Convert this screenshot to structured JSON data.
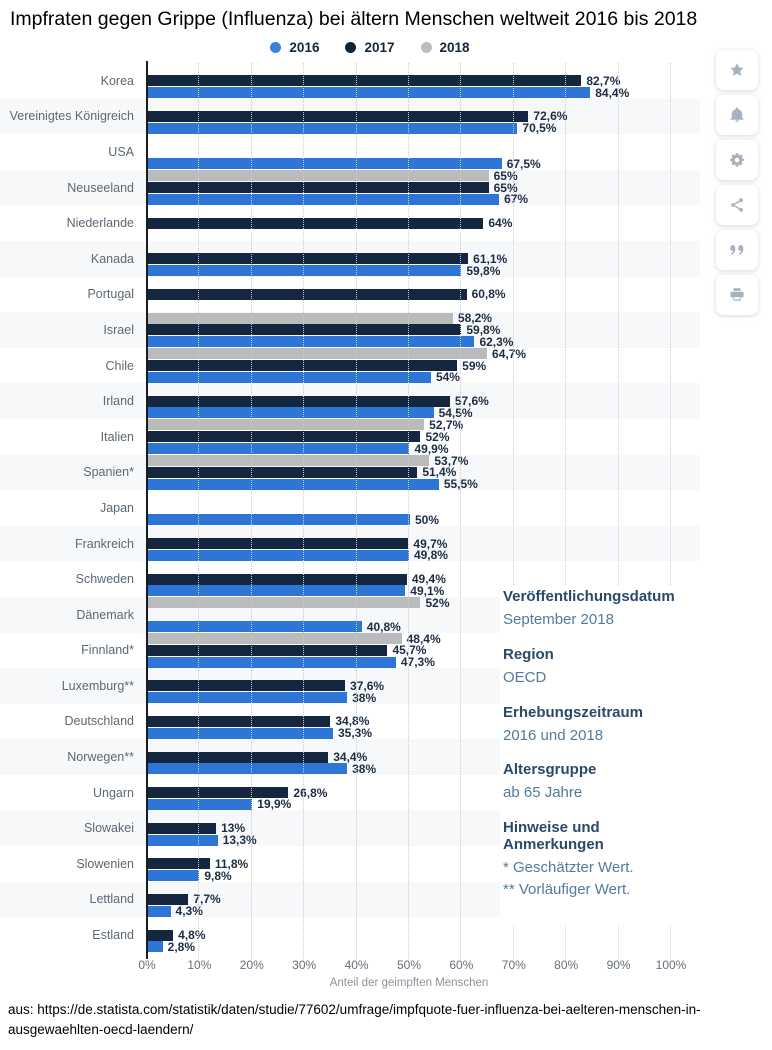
{
  "header": {
    "title": "Impfraten gegen Grippe (Influenza) bei ältern Menschen weltweit 2016 bis 2018"
  },
  "legend": {
    "items": [
      {
        "label": "2016",
        "color": "#3b82dd"
      },
      {
        "label": "2017",
        "color": "#0e2337"
      },
      {
        "label": "2018",
        "color": "#bcbdc0"
      }
    ]
  },
  "chart_data": {
    "type": "bar",
    "orientation": "horizontal",
    "title": "Impfraten gegen Grippe (Influenza) bei ältern Menschen weltweit 2016 bis 2018",
    "xlabel": "Anteil der geimpften Menschen",
    "xlim": [
      0,
      100
    ],
    "xticks": [
      "0%",
      "10%",
      "20%",
      "30%",
      "40%",
      "50%",
      "60%",
      "70%",
      "80%",
      "90%",
      "100%"
    ],
    "grid": true,
    "legend_position": "top",
    "value_suffix": "%",
    "decimal_separator": ",",
    "categories": [
      "Korea",
      "Vereinigtes Königreich",
      "USA",
      "Neuseeland",
      "Niederlande",
      "Kanada",
      "Portugal",
      "Israel",
      "Chile",
      "Irland",
      "Italien",
      "Spanien*",
      "Japan",
      "Frankreich",
      "Schweden",
      "Dänemark",
      "Finnland*",
      "Luxemburg**",
      "Deutschland",
      "Norwegen**",
      "Ungarn",
      "Slowakei",
      "Slowenien",
      "Lettland",
      "Estland"
    ],
    "series": [
      {
        "name": "2018",
        "color": "#b9bbbd",
        "values": [
          null,
          null,
          null,
          65,
          null,
          null,
          null,
          58.2,
          64.7,
          null,
          52.7,
          53.7,
          null,
          null,
          null,
          52,
          48.4,
          null,
          null,
          null,
          null,
          null,
          null,
          null,
          null
        ]
      },
      {
        "name": "2017",
        "color": "#142640",
        "values": [
          82.7,
          72.6,
          null,
          65,
          64,
          61.1,
          60.8,
          59.8,
          59,
          57.6,
          52,
          51.4,
          null,
          49.7,
          49.4,
          null,
          45.7,
          37.6,
          34.8,
          34.4,
          26.8,
          13,
          11.8,
          7.7,
          4.8
        ]
      },
      {
        "name": "2016",
        "color": "#2d76d8",
        "values": [
          84.4,
          70.5,
          67.5,
          67,
          null,
          59.8,
          null,
          62.3,
          54,
          54.5,
          49.9,
          55.5,
          50,
          49.8,
          49.1,
          40.8,
          47.3,
          38,
          35.3,
          38,
          19.9,
          13.3,
          9.8,
          4.3,
          2.8
        ]
      }
    ]
  },
  "info_panel": {
    "sections": [
      {
        "heading": "Veröffentlichungsdatum",
        "lines": [
          "September 2018"
        ]
      },
      {
        "heading": "Region",
        "lines": [
          "OECD"
        ]
      },
      {
        "heading": "Erhebungszeitraum",
        "lines": [
          "2016 und 2018"
        ]
      },
      {
        "heading": "Altersgruppe",
        "lines": [
          "ab 65 Jahre"
        ]
      },
      {
        "heading": "Hinweise und Anmerkungen",
        "lines": [
          "* Geschätzter Wert.",
          "** Vorläufiger Wert."
        ]
      }
    ]
  },
  "action_bar": {
    "icons": [
      "star",
      "bell",
      "gear",
      "share",
      "quote",
      "print"
    ]
  },
  "footer": {
    "source": "aus: https://de.statista.com/statistik/daten/studie/77602/umfrage/impfquote-fuer-influenza-bei-aelteren-menschen-in-ausgewaehlten-oecd-laendern/"
  }
}
